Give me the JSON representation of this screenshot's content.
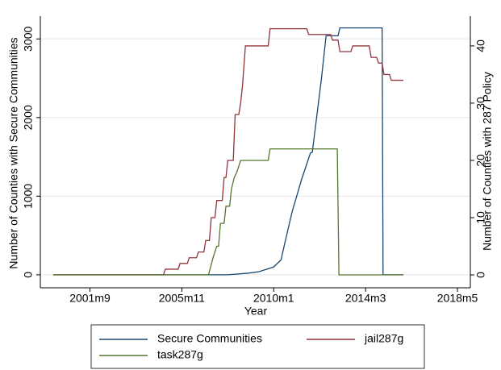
{
  "chart_data": {
    "type": "line",
    "xlabel": "Year",
    "ylabel": "Number of Counties with Secure Communities",
    "y2label": "Number of Counties with 287 Policy",
    "xlim": [
      473,
      707
    ],
    "xticks": [
      {
        "value": 500,
        "label": "2001m9"
      },
      {
        "value": 550,
        "label": "2005m11"
      },
      {
        "value": 600,
        "label": "2010m1"
      },
      {
        "value": 650,
        "label": "2014m3"
      },
      {
        "value": 700,
        "label": "2018m5"
      }
    ],
    "ylim": [
      -165,
      3290
    ],
    "yticks": [
      0,
      1000,
      2000,
      3000
    ],
    "y2lim": [
      -2.25,
      45.2
    ],
    "y2ticks": [
      0,
      10,
      20,
      30,
      40
    ],
    "grid": true,
    "series": [
      {
        "name": "Secure Communities",
        "color": "#1a476f",
        "x": [
          480,
          575,
          586,
          592,
          596,
          600,
          604,
          606,
          610,
          615,
          620,
          621,
          626,
          628.5,
          635,
          636,
          659,
          659.5,
          670.6
        ],
        "values": [
          0,
          0,
          20,
          40,
          70,
          100,
          190,
          400,
          800,
          1200,
          1550,
          1560,
          2500,
          3040,
          3040,
          3140,
          3140,
          0,
          0
        ]
      },
      {
        "name": "jail287g",
        "color": "#90353b",
        "axis": "y2",
        "x": [
          480,
          540,
          541,
          548,
          549,
          553,
          554,
          558,
          559,
          562,
          563,
          565,
          566,
          568,
          569,
          572,
          573,
          574,
          575,
          578,
          579,
          581,
          582,
          583,
          584.6,
          597,
          598,
          618,
          619,
          631,
          632,
          635,
          636,
          642,
          643,
          652,
          653,
          656,
          657,
          659,
          660,
          663,
          664,
          670.6
        ],
        "values": [
          0,
          0,
          1,
          1,
          2,
          2,
          3,
          3,
          4,
          4,
          6,
          6,
          10,
          10,
          13,
          13,
          17,
          17,
          20,
          20,
          28,
          28,
          30,
          33,
          40,
          40,
          43,
          43,
          42,
          42,
          41,
          41,
          39,
          39,
          40,
          40,
          38,
          38,
          37,
          37,
          35,
          35,
          34,
          34
        ]
      },
      {
        "name": "task287g",
        "color": "#55752f",
        "axis": "y2",
        "x": [
          480,
          564.5,
          567,
          569,
          570,
          571,
          573,
          574,
          576,
          577,
          578.5,
          580,
          582,
          597,
          598,
          634.6,
          635.5,
          670.6
        ],
        "values": [
          0,
          0,
          3,
          5,
          5,
          9,
          9,
          12,
          12,
          15,
          17,
          18,
          20,
          20,
          22,
          22,
          0,
          0
        ]
      }
    ]
  }
}
